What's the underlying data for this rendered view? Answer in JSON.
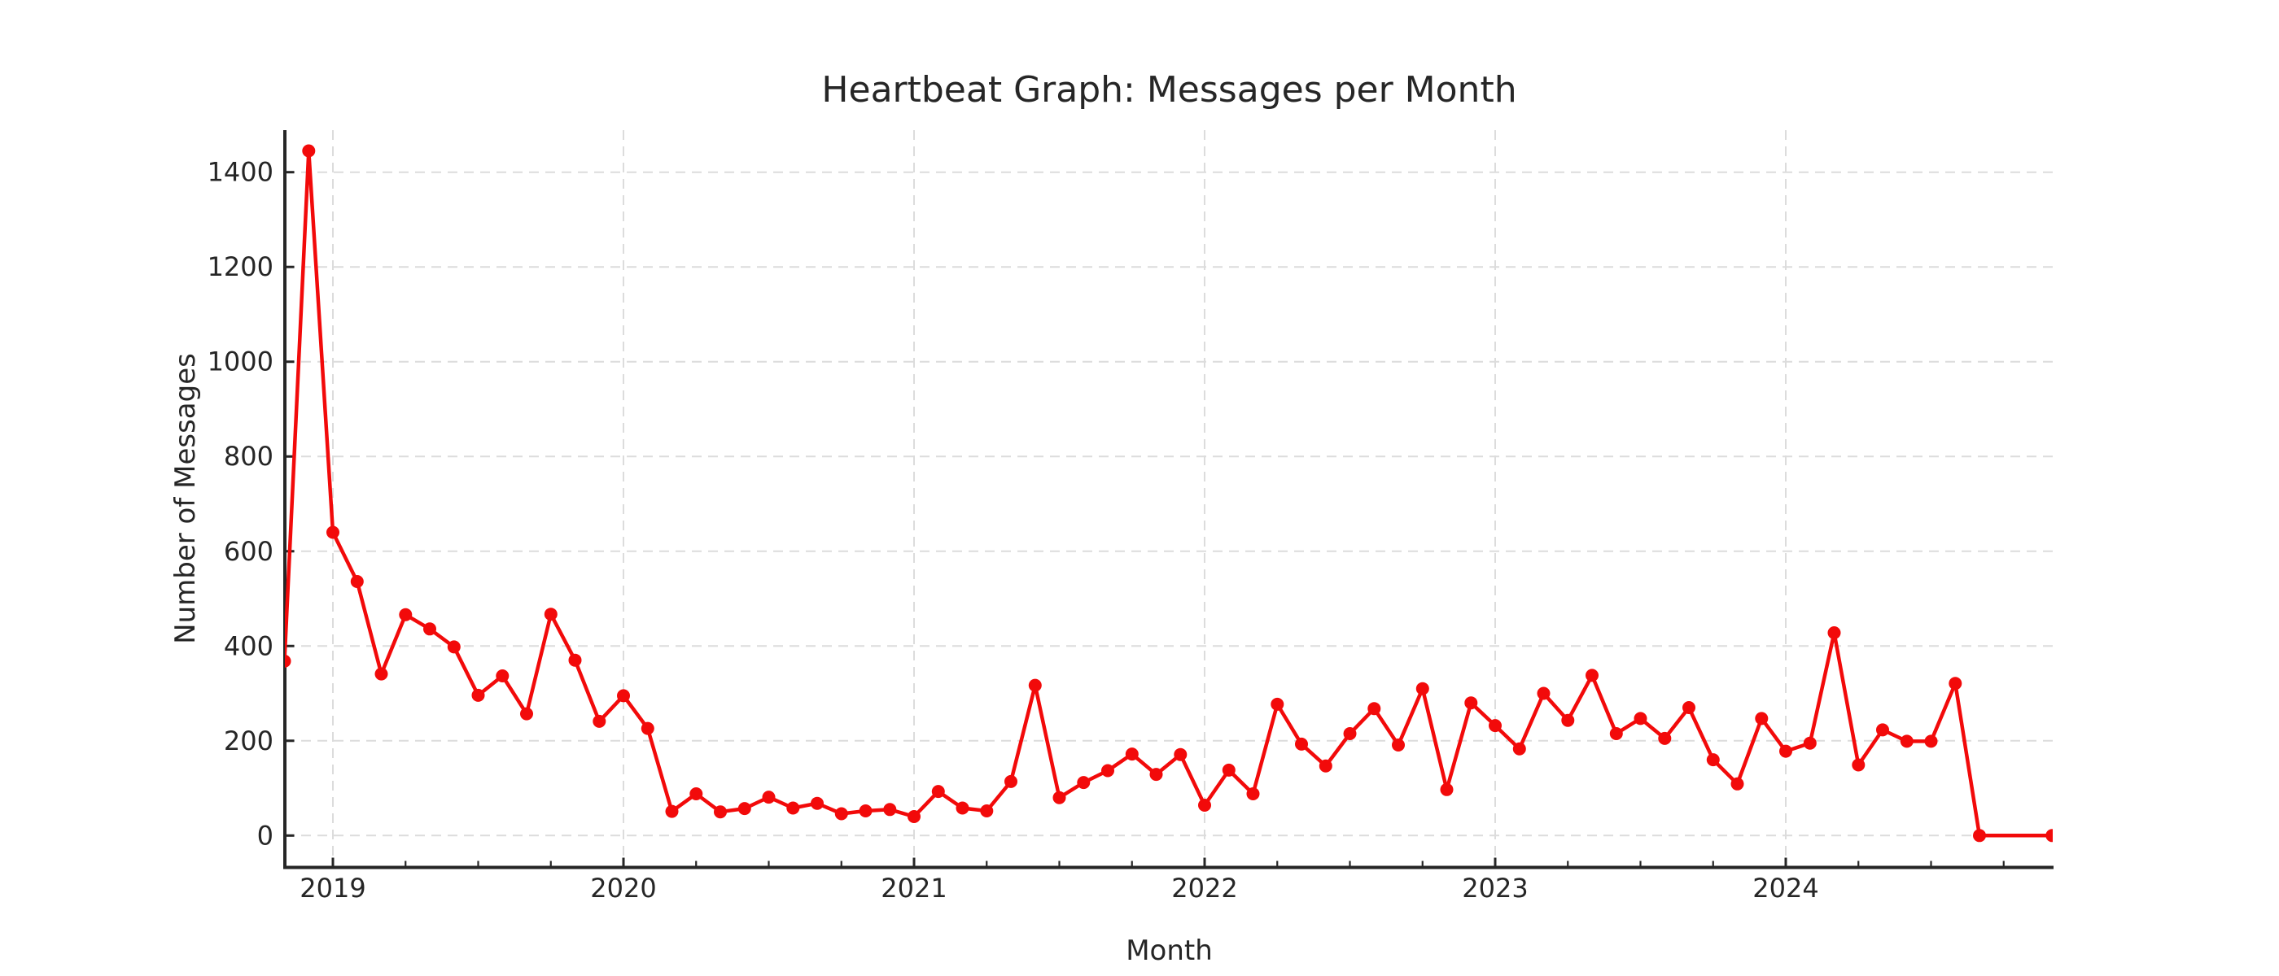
{
  "chart": {
    "title": "Heartbeat Graph: Messages per Month",
    "xlabel": "Month",
    "ylabel": "Number of Messages"
  },
  "style": {
    "series_red": "#f20a0a",
    "grid_color": "#dcdcdc",
    "axis_color": "#262626",
    "text_color": "#262626",
    "background": "#ffffff"
  },
  "chart_data": {
    "type": "line",
    "title": "Heartbeat Graph: Messages per Month",
    "xlabel": "Month",
    "ylabel": "Number of Messages",
    "legend_position": "none",
    "grid": "dashed-light-gray",
    "x_tick_labels": [
      "2019",
      "2020",
      "2021",
      "2022",
      "2023",
      "2024"
    ],
    "x_minor_ticks": "quarterly (Apr, Jul, Oct)",
    "y_ticks": [
      0,
      200,
      400,
      600,
      800,
      1000,
      1200,
      1400
    ],
    "xlim": [
      "2018-11",
      "2024-12"
    ],
    "ylim": [
      -67,
      1490
    ],
    "series": [
      {
        "name": "Messages per Month",
        "color": "#f20a0a",
        "marker": "circle",
        "months": [
          "2018-11",
          "2018-12",
          "2019-01",
          "2019-02",
          "2019-03",
          "2019-04",
          "2019-05",
          "2019-06",
          "2019-07",
          "2019-08",
          "2019-09",
          "2019-10",
          "2019-11",
          "2019-12",
          "2020-01",
          "2020-02",
          "2020-03",
          "2020-04",
          "2020-05",
          "2020-06",
          "2020-07",
          "2020-08",
          "2020-09",
          "2020-10",
          "2020-11",
          "2020-12",
          "2021-01",
          "2021-02",
          "2021-03",
          "2021-04",
          "2021-05",
          "2021-06",
          "2021-07",
          "2021-08",
          "2021-09",
          "2021-10",
          "2021-11",
          "2021-12",
          "2022-01",
          "2022-02",
          "2022-03",
          "2022-04",
          "2022-05",
          "2022-06",
          "2022-07",
          "2022-08",
          "2022-09",
          "2022-10",
          "2022-11",
          "2022-12",
          "2023-01",
          "2023-02",
          "2023-03",
          "2023-04",
          "2023-05",
          "2023-06",
          "2023-07",
          "2023-08",
          "2023-09",
          "2023-10",
          "2023-11",
          "2023-12",
          "2024-01",
          "2024-02",
          "2024-03",
          "2024-04",
          "2024-05",
          "2024-06",
          "2024-07",
          "2024-08",
          "2024-09",
          "2024-10",
          "2024-11",
          "2024-12"
        ],
        "values": [
          368,
          1445,
          640,
          536,
          341,
          466,
          436,
          398,
          296,
          337,
          257,
          467,
          370,
          241,
          295,
          226,
          51,
          88,
          50,
          57,
          81,
          58,
          68,
          46,
          52,
          55,
          40,
          93,
          58,
          52,
          114,
          317,
          80,
          112,
          137,
          172,
          129,
          171,
          64,
          138,
          88,
          277,
          193,
          147,
          215,
          268,
          191,
          310,
          97,
          280,
          232,
          183,
          300,
          243,
          338,
          215,
          247,
          205,
          270,
          160,
          109,
          247,
          178,
          195,
          428,
          149,
          223,
          199,
          199,
          321,
          0,
          null,
          null,
          0
        ]
      }
    ]
  }
}
